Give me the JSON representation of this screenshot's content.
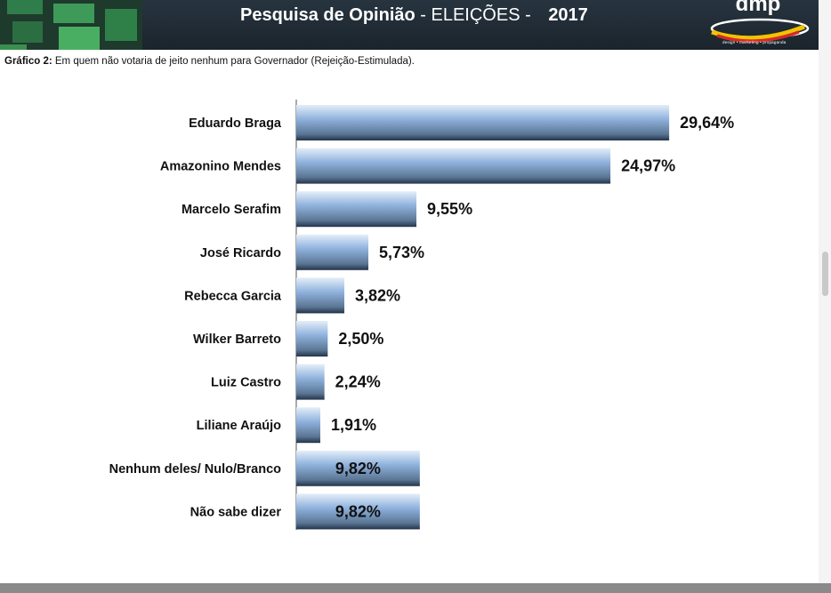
{
  "header": {
    "title_bold": "Pesquisa de Opinião",
    "title_rest": " - ELEIÇÕES - ",
    "year": "2017",
    "logo_text": "dmp",
    "logo_tagline": "design • marketing • propaganda",
    "background": "#1f2a33"
  },
  "chart_subtitle": {
    "label": "Gráfico 2:",
    "text": "Em quem não votaria de jeito nenhum para Governador (Rejeição-Estimulada)."
  },
  "chart_data": {
    "type": "bar",
    "orientation": "horizontal",
    "categories": [
      "Eduardo Braga",
      "Amazonino Mendes",
      "Marcelo Serafim",
      "José Ricardo",
      "Rebecca Garcia",
      "Wilker Barreto",
      "Luiz Castro",
      "Liliane Araújo",
      "Nenhum deles/ Nulo/Branco",
      "Não sabe dizer"
    ],
    "values": [
      29.64,
      24.97,
      9.55,
      5.73,
      3.82,
      2.5,
      2.24,
      1.91,
      9.82,
      9.82
    ],
    "value_labels": [
      "29,64%",
      "24,97%",
      "9,55%",
      "5,73%",
      "3,82%",
      "2,50%",
      "2,24%",
      "1,91%",
      "9,82%",
      "9,82%"
    ],
    "label_inside": [
      false,
      false,
      false,
      false,
      false,
      false,
      false,
      false,
      true,
      true
    ],
    "xlim": [
      0,
      30
    ],
    "grid": false,
    "legend": "none",
    "bar_color": "#8fb2dd"
  }
}
